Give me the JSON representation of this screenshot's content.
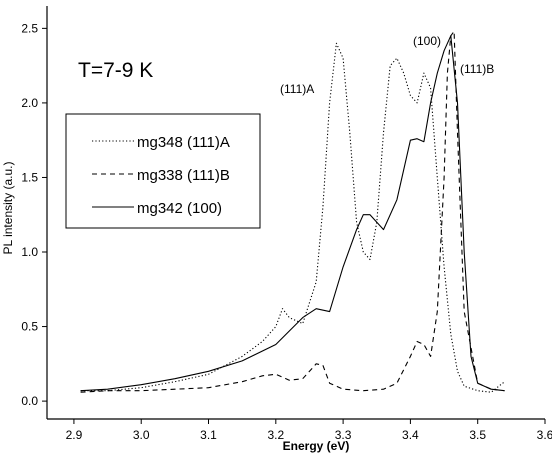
{
  "chart_data": {
    "type": "line",
    "xlabel": "Energy (eV)",
    "ylabel": "PL intensity (a.u.)",
    "xlim": [
      2.86,
      3.6
    ],
    "ylim": [
      -0.12,
      2.65
    ],
    "xticks": [
      "2.9",
      "3.0",
      "3.1",
      "3.2",
      "3.3",
      "3.4",
      "3.5",
      "3.6"
    ],
    "yticks": [
      "0.0",
      "0.5",
      "1.0",
      "1.5",
      "2.0",
      "2.5"
    ],
    "grid": false,
    "legend_position": "left",
    "annotations": {
      "temperature": "T=7-9 K",
      "peak_111A": "(111)A",
      "peak_100": "(100)",
      "peak_111B": "(111)B"
    },
    "series": [
      {
        "name": "mg348 (111)A",
        "style": "dotted",
        "color": "#000000",
        "x": [
          2.91,
          2.95,
          3.0,
          3.05,
          3.1,
          3.15,
          3.18,
          3.2,
          3.21,
          3.22,
          3.24,
          3.26,
          3.27,
          3.28,
          3.29,
          3.3,
          3.31,
          3.32,
          3.33,
          3.34,
          3.35,
          3.36,
          3.37,
          3.38,
          3.39,
          3.4,
          3.41,
          3.42,
          3.43,
          3.44,
          3.45,
          3.46,
          3.47,
          3.48,
          3.5,
          3.52,
          3.54
        ],
        "y": [
          0.07,
          0.07,
          0.09,
          0.13,
          0.18,
          0.3,
          0.4,
          0.5,
          0.62,
          0.56,
          0.52,
          0.8,
          1.3,
          2.0,
          2.4,
          2.3,
          1.8,
          1.2,
          1.0,
          0.95,
          1.2,
          1.8,
          2.25,
          2.3,
          2.2,
          2.05,
          2.0,
          2.2,
          2.1,
          1.5,
          0.9,
          0.45,
          0.2,
          0.1,
          0.07,
          0.06,
          0.13
        ]
      },
      {
        "name": "mg338 (111)B",
        "style": "dashed",
        "color": "#000000",
        "x": [
          2.91,
          2.95,
          3.0,
          3.05,
          3.1,
          3.15,
          3.18,
          3.2,
          3.22,
          3.24,
          3.25,
          3.26,
          3.27,
          3.28,
          3.3,
          3.33,
          3.36,
          3.38,
          3.4,
          3.41,
          3.42,
          3.43,
          3.44,
          3.45,
          3.455,
          3.46,
          3.465,
          3.47,
          3.48,
          3.5,
          3.52,
          3.54
        ],
        "y": [
          0.06,
          0.07,
          0.07,
          0.08,
          0.09,
          0.13,
          0.17,
          0.18,
          0.14,
          0.15,
          0.2,
          0.25,
          0.24,
          0.12,
          0.08,
          0.07,
          0.08,
          0.12,
          0.3,
          0.4,
          0.38,
          0.3,
          0.6,
          1.5,
          2.2,
          2.45,
          2.48,
          1.8,
          0.6,
          0.12,
          0.08,
          0.07
        ]
      },
      {
        "name": "mg342 (100)",
        "style": "solid",
        "color": "#000000",
        "x": [
          2.91,
          2.95,
          3.0,
          3.05,
          3.1,
          3.15,
          3.2,
          3.24,
          3.26,
          3.28,
          3.3,
          3.32,
          3.33,
          3.34,
          3.35,
          3.36,
          3.38,
          3.4,
          3.41,
          3.42,
          3.43,
          3.44,
          3.45,
          3.46,
          3.47,
          3.48,
          3.49,
          3.5,
          3.52,
          3.54
        ],
        "y": [
          0.07,
          0.08,
          0.11,
          0.15,
          0.2,
          0.27,
          0.38,
          0.56,
          0.62,
          0.6,
          0.9,
          1.15,
          1.25,
          1.25,
          1.2,
          1.15,
          1.35,
          1.75,
          1.76,
          1.74,
          2.0,
          2.2,
          2.35,
          2.45,
          2.0,
          1.0,
          0.3,
          0.12,
          0.08,
          0.07
        ]
      }
    ]
  }
}
